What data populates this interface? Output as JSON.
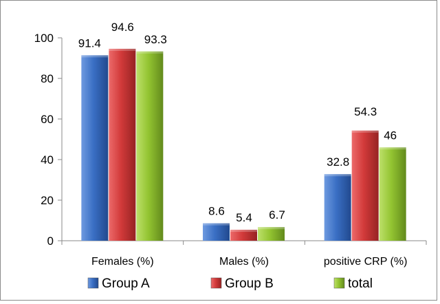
{
  "chart_data": {
    "type": "bar",
    "categories": [
      "Females (%)",
      "Males (%)",
      "positive CRP (%)"
    ],
    "series": [
      {
        "name": "Group A",
        "values": [
          91.4,
          8.6,
          32.8
        ]
      },
      {
        "name": "Group B",
        "values": [
          94.6,
          5.4,
          54.3
        ]
      },
      {
        "name": "total",
        "values": [
          93.3,
          6.7,
          46
        ]
      }
    ],
    "data_labels": [
      [
        "91.4",
        "8.6",
        "32.8"
      ],
      [
        "94.6",
        "5.4",
        "54.3"
      ],
      [
        "93.3",
        "6.7",
        "46"
      ]
    ],
    "yticks": [
      "0",
      "20",
      "40",
      "60",
      "80",
      "100"
    ],
    "ylim": [
      0,
      100
    ],
    "grid": false,
    "legend": "bottom",
    "colors": {
      "Group A": "#3a6fc4",
      "Group B": "#d23a3a",
      "total": "#93c431"
    }
  }
}
